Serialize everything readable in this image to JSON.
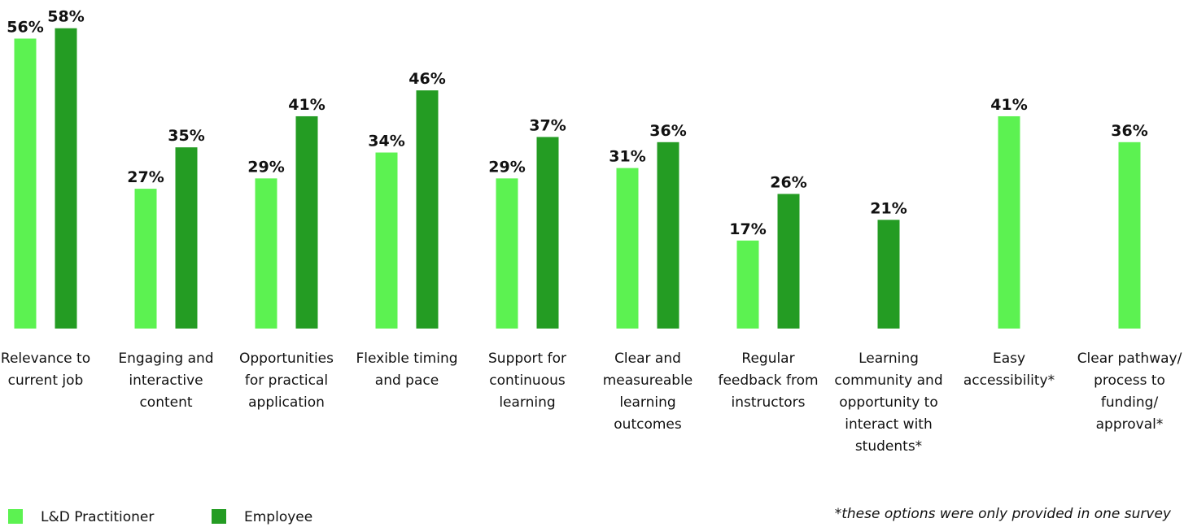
{
  "chart_data": {
    "type": "bar",
    "categories": [
      "Relevance to current job",
      "Engaging and interactive content",
      "Opportunities for practical application",
      "Flexible timing and pace",
      "Support for continuous learning",
      "Clear and measureable learning outcomes",
      "Regular feedback from instructors",
      "Learning community and opportunity to interact with students*",
      "Easy accessibility*",
      "Clear pathway/ process to funding/ approval*"
    ],
    "series": [
      {
        "name": "L&D Practitioner",
        "color": "#5cf251",
        "values": [
          56,
          27,
          29,
          34,
          29,
          31,
          17,
          null,
          41,
          36
        ],
        "value_labels": [
          "56%",
          "27%",
          "29%",
          "34%",
          "29%",
          "31%",
          "17%",
          null,
          "41%",
          "36%"
        ]
      },
      {
        "name": "Employee",
        "color": "#249c23",
        "values": [
          58,
          35,
          41,
          46,
          37,
          36,
          26,
          21,
          null,
          null
        ],
        "value_labels": [
          "58%",
          "35%",
          "41%",
          "46%",
          "37%",
          "36%",
          "26%",
          "21%",
          null,
          null
        ]
      }
    ],
    "ylim": [
      0,
      60
    ],
    "legend": "bottom-left",
    "annotation": "*these options were only provided in one survey"
  }
}
